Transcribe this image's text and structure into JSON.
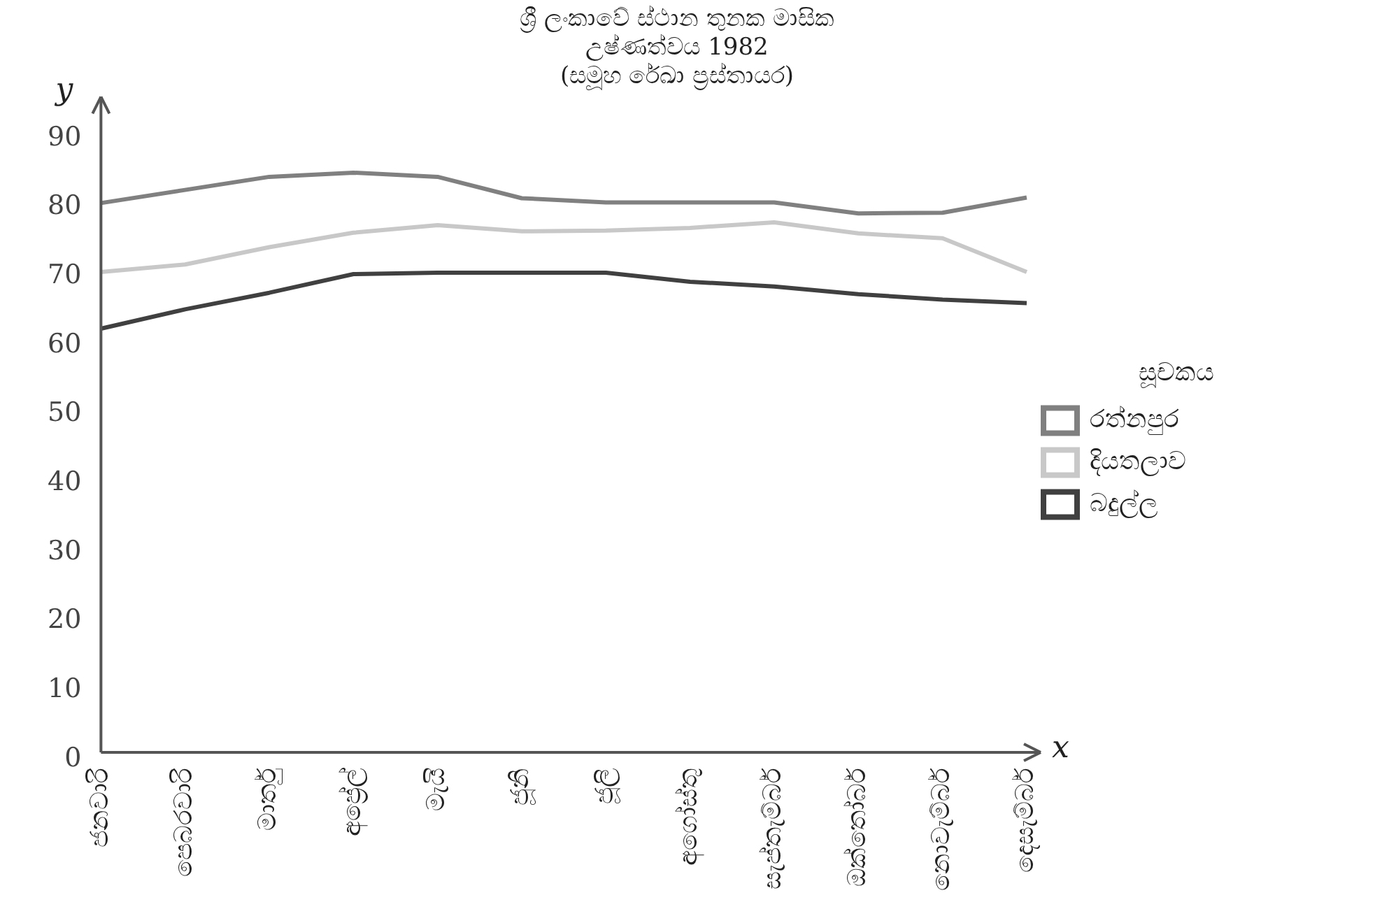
{
  "chart_data": {
    "type": "line",
    "title": "ශ්‍රී ලංකාවේ ස්ථාන තුනක මාසික\nඋෂ්ණත්වය 1982\n(සමූහ රේඛා ප්‍රස්තායර)",
    "xlabel": "x",
    "ylabel": "y",
    "legend_title": "සූචකය",
    "categories": [
      "ජනවාරි",
      "පෙබරවාරි",
      "මාර්තු",
      "අප්‍රේල්",
      "මැයි",
      "ජූනි",
      "ජූලි",
      "අගෝස්තු",
      "සැප්තැම්බර්",
      "ඔක්තෝබර්",
      "නොවැම්බර්",
      "දෙසැම්බර්"
    ],
    "series": [
      {
        "name": "රත්නපුර",
        "color": "#808080",
        "values": [
          79.6,
          81.5,
          83.4,
          84,
          83.4,
          80.3,
          79.7,
          79.7,
          79.7,
          78.1,
          78.2,
          80.4
        ]
      },
      {
        "name": "දියතලාව",
        "color": "#c8c8c8",
        "values": [
          69.6,
          70.7,
          73.2,
          75.3,
          76.4,
          75.5,
          75.6,
          76,
          76.8,
          75.2,
          74.5,
          69.6
        ]
      },
      {
        "name": "බදුල්ල",
        "color": "#404040",
        "values": [
          61.4,
          64.2,
          66.6,
          69.3,
          69.5,
          69.5,
          69.5,
          68.2,
          67.5,
          66.4,
          65.6,
          65.1
        ]
      }
    ],
    "ylim": [
      0,
      95
    ],
    "yticks": [
      0,
      10,
      20,
      30,
      40,
      50,
      60,
      70,
      80,
      90
    ],
    "grid": false,
    "legend": "right",
    "marker": "none",
    "line_style": "solid"
  }
}
